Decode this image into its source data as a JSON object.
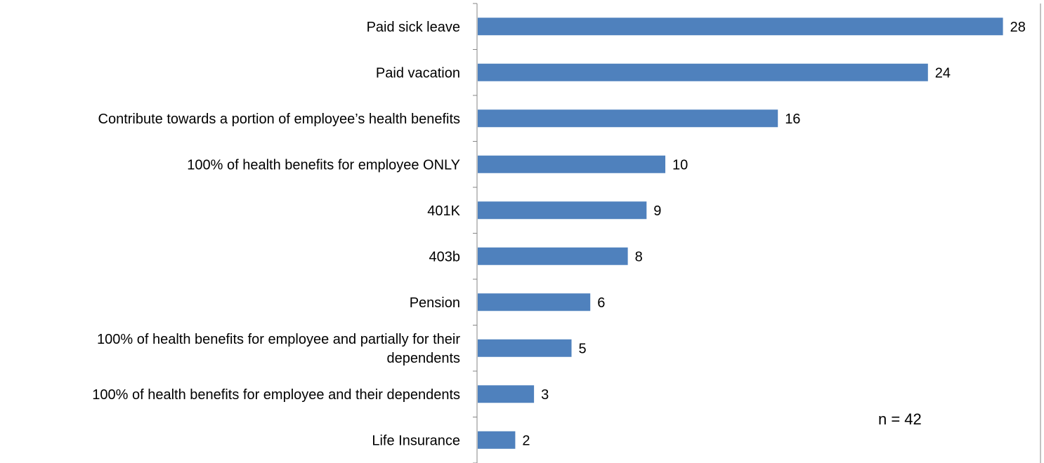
{
  "chart_data": {
    "type": "bar",
    "orientation": "horizontal",
    "categories": [
      "Paid sick leave",
      "Paid vacation",
      "Contribute towards a portion of employee’s health benefits",
      "100% of health benefits for employee ONLY",
      "401K",
      "403b",
      "Pension",
      "100% of health benefits for employee and partially for their dependents",
      "100% of health benefits for employee and their dependents",
      "Life Insurance"
    ],
    "category_label_lines": [
      [
        "Paid sick leave"
      ],
      [
        "Paid vacation"
      ],
      [
        "Contribute towards a portion of employee’s health benefits"
      ],
      [
        "100% of health benefits for employee ONLY"
      ],
      [
        "401K"
      ],
      [
        "403b"
      ],
      [
        "Pension"
      ],
      [
        "100% of health benefits for employee and partially for their",
        "dependents"
      ],
      [
        "100% of health benefits for employee and their dependents"
      ],
      [
        "Life Insurance"
      ]
    ],
    "values": [
      28,
      24,
      16,
      10,
      9,
      8,
      6,
      5,
      3,
      2
    ],
    "value_labels": [
      "28",
      "24",
      "16",
      "10",
      "9",
      "8",
      "6",
      "5",
      "3",
      "2"
    ],
    "annotation": "n = 42",
    "title": "",
    "xlabel": "",
    "ylabel": "",
    "xlim": [
      0,
      30
    ],
    "grid": false,
    "legend": "none",
    "colors": {
      "bar": "#4F81BD",
      "axis": "#868686",
      "text": "#000000"
    }
  }
}
